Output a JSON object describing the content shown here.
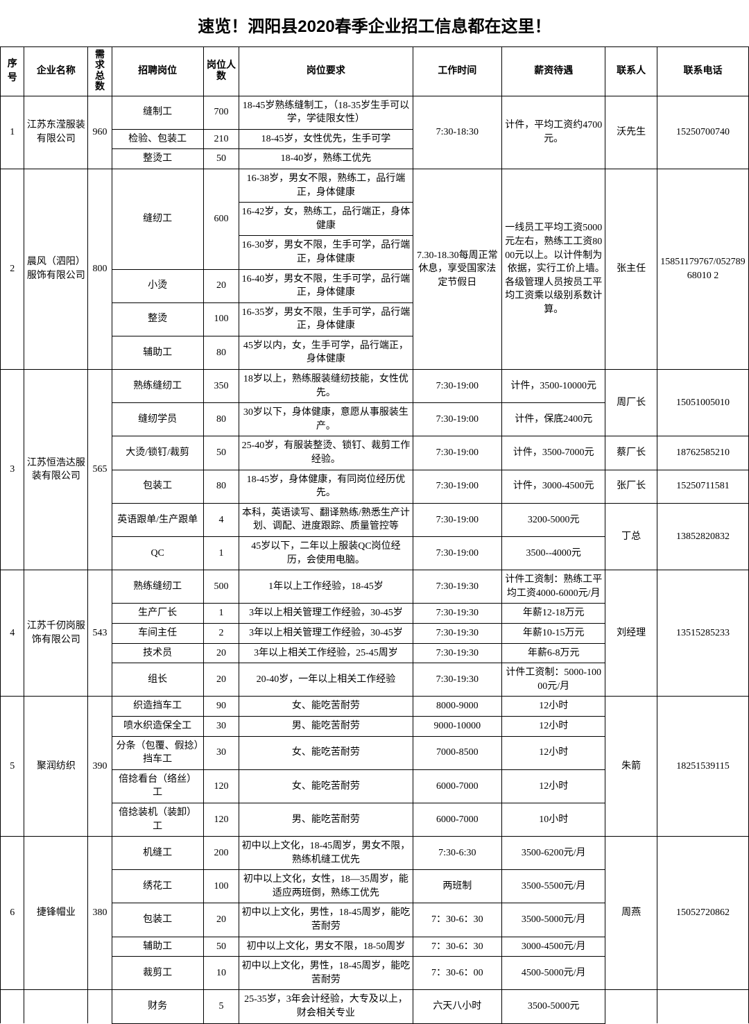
{
  "title": "速览！泗阳县2020春季企业招工信息都在这里！",
  "headers": {
    "seq": "序号",
    "company": "企业名称",
    "total": "需求总数",
    "position": "招聘岗位",
    "count": "岗位人数",
    "requirement": "岗位要求",
    "worktime": "工作时间",
    "salary": "薪资待遇",
    "contact": "联系人",
    "phone": "联系电话"
  },
  "rows": [
    {
      "seq": "1",
      "company": "江苏东滢服装有限公司",
      "total": "960",
      "positions": [
        {
          "name": "缝制工",
          "count": "700",
          "req": "18-45岁熟练缝制工，（18-35岁生手可以学，学徒限女性）",
          "time": "7:30-18:30",
          "salary": "计件，平均工资约4700元。",
          "contact": "沃先生",
          "phone": "15250700740",
          "timeSpan": 3,
          "salarySpan": 3,
          "contactSpan": 3,
          "phoneSpan": 3
        },
        {
          "name": "检验、包装工",
          "count": "210",
          "req": "18-45岁，女性优先，生手可学"
        },
        {
          "name": "整烫工",
          "count": "50",
          "req": "18-40岁，熟练工优先"
        }
      ]
    },
    {
      "seq": "2",
      "company": "晨风（泗阳）服饰有限公司",
      "total": "800",
      "positions": [
        {
          "name": "缝纫工",
          "nameSpan": 3,
          "count": "600",
          "countSpan": 3,
          "req": "16-38岁，男女不限，熟练工，品行端正，身体健康",
          "time": "7.30-18.30每周正常休息，享受国家法定节假日",
          "salary": "一线员工平均工资5000元左右，熟练工工资8000元以上。以计件制为依据，实行工价上墙。　各级管理人员按员工平均工资乘以级别系数计算。",
          "contact": "张主任",
          "phone": "15851179767/05278968010 2",
          "timeSpan": 6,
          "salarySpan": 6,
          "contactSpan": 6,
          "phoneSpan": 6
        },
        {
          "req": "16-42岁，女，熟练工，品行端正，身体健康"
        },
        {
          "req": "16-30岁，男女不限，生手可学，品行端正，身体健康"
        },
        {
          "name": "小烫",
          "count": "20",
          "req": "16-40岁，男女不限，生手可学，品行端正，身体健康"
        },
        {
          "name": "整烫",
          "count": "100",
          "req": "16-35岁，男女不限，生手可学，品行端正，身体健康"
        },
        {
          "name": "辅助工",
          "count": "80",
          "req": "45岁以内，女，生手可学，品行端正，身体健康"
        }
      ]
    },
    {
      "seq": "3",
      "company": "江苏恒浩达服装有限公司",
      "total": "565",
      "positions": [
        {
          "name": "熟练缝纫工",
          "count": "350",
          "req": "18岁以上，熟练服装缝纫技能，女性优先。",
          "time": "7:30-19:00",
          "salary": "计件，3500-10000元",
          "contact": "周厂长",
          "phone": "15051005010",
          "contactSpan": 2,
          "phoneSpan": 2
        },
        {
          "name": "缝纫学员",
          "count": "80",
          "req": "30岁以下，身体健康，意愿从事服装生产。",
          "time": "7:30-19:00",
          "salary": "计件，保底2400元"
        },
        {
          "name": "大烫/锁钉/裁剪",
          "count": "50",
          "req": "25-40岁，有服装整烫、锁钉、裁剪工作经验。",
          "time": "7:30-19:00",
          "salary": "计件，3500-7000元",
          "contact": "蔡厂长",
          "phone": "18762585210"
        },
        {
          "name": "包装工",
          "count": "80",
          "req": "18-45岁，身体健康，有同岗位经历优先。",
          "time": "7:30-19:00",
          "salary": "计件，3000-4500元",
          "contact": "张厂长",
          "phone": "15250711581"
        },
        {
          "name": "英语跟单/生产跟单",
          "count": "4",
          "req": "本科，英语读写、翻译熟练/熟悉生产计划、调配、进度跟踪、质量管控等",
          "time": "7:30-19:00",
          "salary": "3200-5000元",
          "contact": "丁总",
          "phone": "13852820832",
          "contactSpan": 2,
          "phoneSpan": 2
        },
        {
          "name": "QC",
          "count": "1",
          "req": "45岁以下，二年以上服装QC岗位经历，会使用电脑。",
          "time": "7:30-19:00",
          "salary": "3500--4000元"
        }
      ]
    },
    {
      "seq": "4",
      "company": "江苏千仞岗服饰有限公司",
      "total": "543",
      "positions": [
        {
          "name": "熟练缝纫工",
          "count": "500",
          "req": "1年以上工作经验，18-45岁",
          "time": "7:30-19:30",
          "salary": "计件工资制：熟练工平均工资4000-6000元/月",
          "contact": "刘经理",
          "phone": "13515285233",
          "contactSpan": 5,
          "phoneSpan": 5
        },
        {
          "name": "生产厂长",
          "count": "1",
          "req": "3年以上相关管理工作经验，30-45岁",
          "time": "7:30-19:30",
          "salary": "年薪12-18万元"
        },
        {
          "name": "车间主任",
          "count": "2",
          "req": "3年以上相关管理工作经验，30-45岁",
          "time": "7:30-19:30",
          "salary": "年薪10-15万元"
        },
        {
          "name": "技术员",
          "count": "20",
          "req": "3年以上相关工作经验，25-45周岁",
          "time": "7:30-19:30",
          "salary": "年薪6-8万元"
        },
        {
          "name": "组长",
          "count": "20",
          "req": "20-40岁，一年以上相关工作经验",
          "time": "7:30-19:30",
          "salary": "计件工资制：5000-10000元/月"
        }
      ]
    },
    {
      "seq": "5",
      "company": "聚润纺织",
      "total": "390",
      "positions": [
        {
          "name": "织造挡车工",
          "count": "90",
          "req": "女、能吃苦耐劳",
          "time": "8000-9000",
          "salary": "12小时",
          "contact": "朱箭",
          "phone": "18251539115",
          "contactSpan": 5,
          "phoneSpan": 5
        },
        {
          "name": "喷水织造保全工",
          "count": "30",
          "req": "男、能吃苦耐劳",
          "time": "9000-10000",
          "salary": "12小时"
        },
        {
          "name": "分条（包覆、假捻）挡车工",
          "count": "30",
          "req": "女、能吃苦耐劳",
          "time": "7000-8500",
          "salary": "12小时"
        },
        {
          "name": "倍捻看台（络丝）工",
          "count": "120",
          "req": "女、能吃苦耐劳",
          "time": "6000-7000",
          "salary": "12小时"
        },
        {
          "name": "倍捻装机（装卸）工",
          "count": "120",
          "req": "男、能吃苦耐劳",
          "time": "6000-7000",
          "salary": "10小时"
        }
      ]
    },
    {
      "seq": "6",
      "company": "捷锋帽业",
      "total": "380",
      "positions": [
        {
          "name": "机缝工",
          "count": "200",
          "req": "初中以上文化，18-45周岁，男女不限，熟练机缝工优先",
          "time": "7:30-6:30",
          "salary": "3500-6200元/月",
          "contact": "周燕",
          "phone": "15052720862",
          "contactSpan": 5,
          "phoneSpan": 5
        },
        {
          "name": "绣花工",
          "count": "100",
          "req": "初中以上文化，女性，18—35周岁，能适应两班倒，熟练工优先",
          "time": "两班制",
          "salary": "3500-5500元/月"
        },
        {
          "name": "包装工",
          "count": "20",
          "req": "初中以上文化，男性，18-45周岁，能吃苦耐劳",
          "time": "7：30-6：30",
          "salary": "3500-5000元/月"
        },
        {
          "name": "辅助工",
          "count": "50",
          "req": "初中以上文化，男女不限，18-50周岁",
          "time": "7：30-6：30",
          "salary": "3000-4500元/月"
        },
        {
          "name": "裁剪工",
          "count": "10",
          "req": "初中以上文化，男性，18-45周岁，能吃苦耐劳",
          "time": "7：30-6：00",
          "salary": "4500-5000元/月"
        }
      ]
    },
    {
      "seq": "",
      "company": "",
      "total": "",
      "positions": [
        {
          "name": "财务",
          "count": "5",
          "req": "25-35岁，3年会计经验，大专及以上，财会相关专业",
          "time": "六天八小时",
          "salary": "3500-5000元",
          "contact": "",
          "phone": ""
        }
      ],
      "partial": true
    }
  ]
}
